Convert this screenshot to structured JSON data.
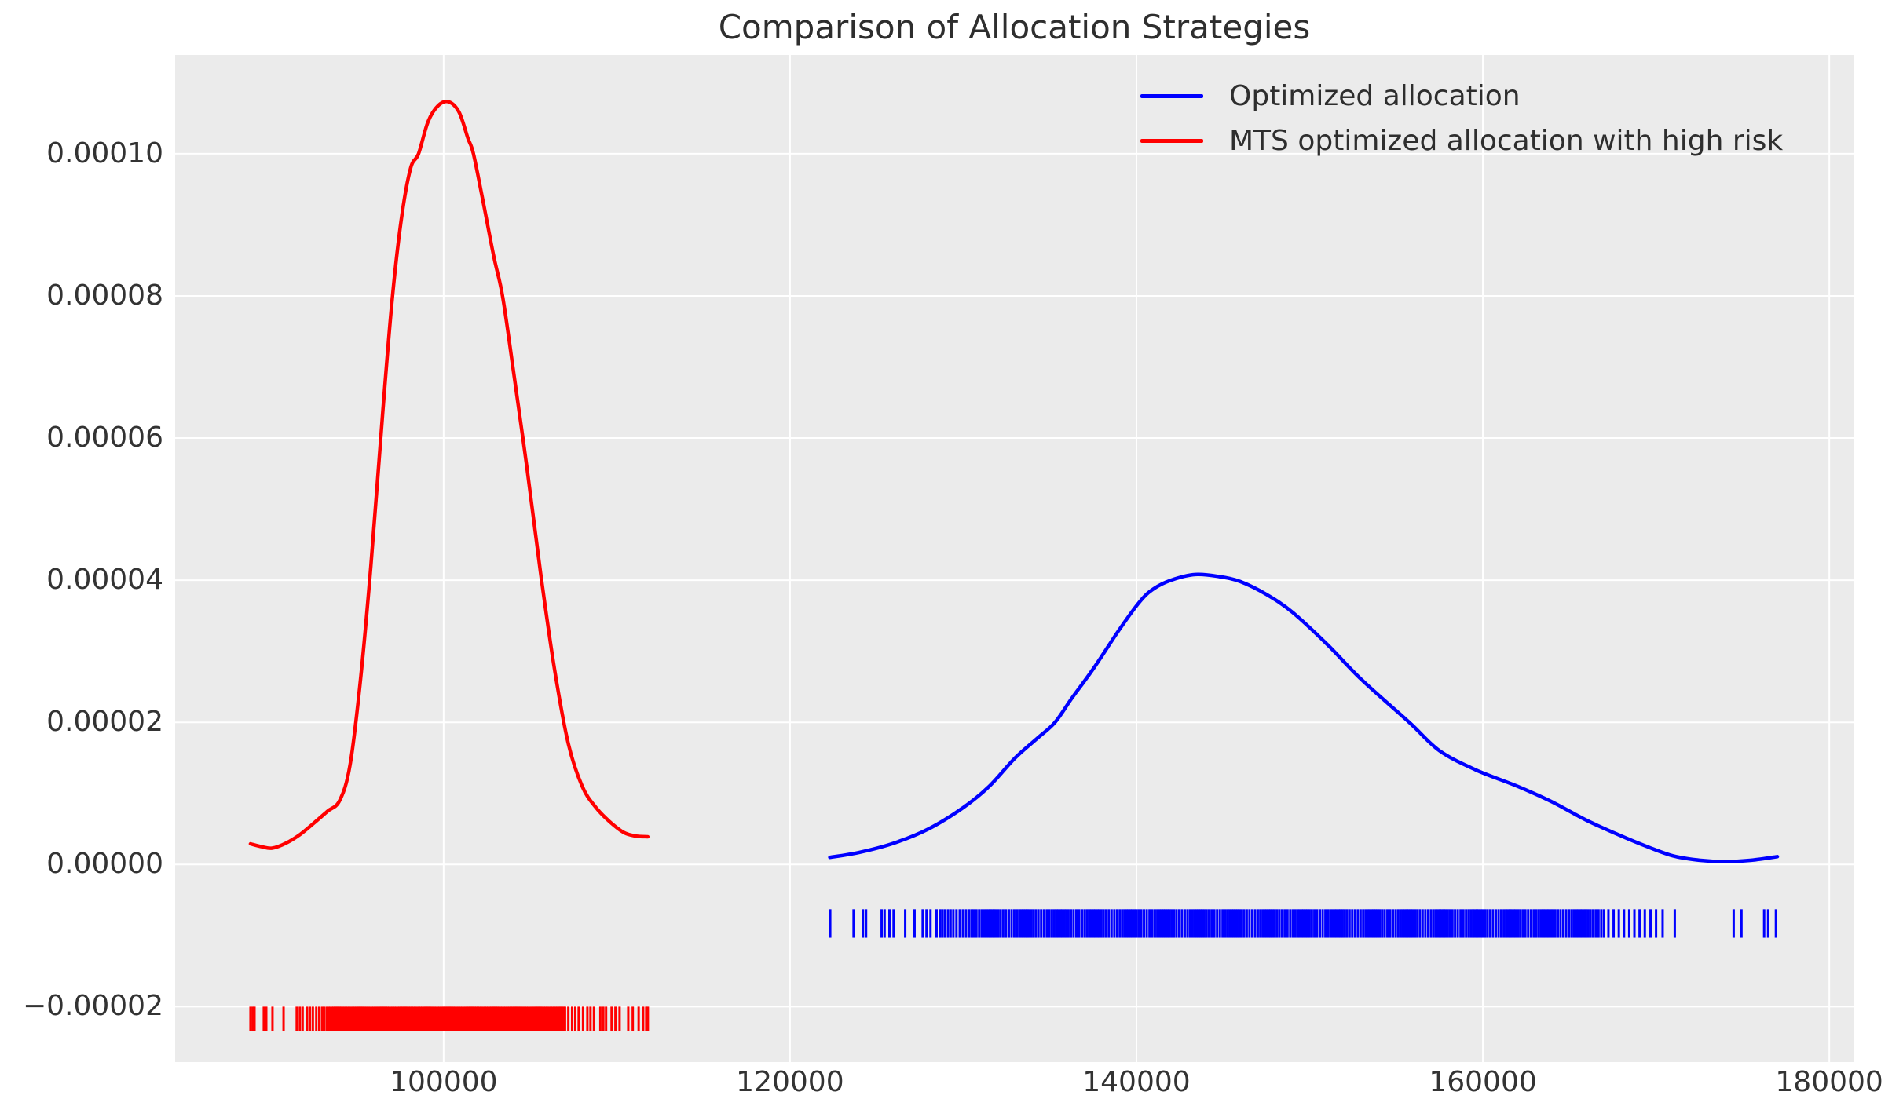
{
  "figure": {
    "background": "#ffffff",
    "plot_background": "#ebebeb",
    "grid_color": "#ffffff",
    "text_color": "#333333"
  },
  "chart_data": {
    "type": "line",
    "title": "Comparison of Allocation Strategies",
    "xlabel": "",
    "ylabel": "",
    "grid": true,
    "legend_position": "upper right",
    "xlim": [
      84500,
      181400
    ],
    "ylim": [
      -2.78e-05,
      0.0001139
    ],
    "x_ticks": [
      100000,
      120000,
      140000,
      160000,
      180000
    ],
    "x_tick_labels": [
      "100000",
      "120000",
      "140000",
      "160000",
      "180000"
    ],
    "y_ticks": [
      0.0001,
      8e-05,
      6e-05,
      4e-05,
      2e-05,
      0.0,
      -2e-05
    ],
    "y_tick_labels": [
      "0.00010",
      "0.00008",
      "0.00006",
      "0.00004",
      "0.00002",
      "0.00000",
      "−0.00002"
    ],
    "series": [
      {
        "name": "Optimized allocation",
        "color": "#0000ff",
        "line_width": 4.5,
        "x": [
          122300,
          124000,
          126000,
          128000,
          130000,
          131500,
          133000,
          134300,
          135300,
          136300,
          137500,
          139000,
          140200,
          141000,
          142000,
          143400,
          144800,
          146000,
          147500,
          149000,
          151000,
          153000,
          155750,
          157500,
          159600,
          162000,
          164000,
          166000,
          168000,
          169500,
          171000,
          172500,
          174000,
          175500,
          177000
        ],
        "y": [
          1e-06,
          1.7e-06,
          3e-06,
          5e-06,
          8e-06,
          1.1e-05,
          1.5e-05,
          1.78e-05,
          2e-05,
          2.35e-05,
          2.75e-05,
          3.3e-05,
          3.7e-05,
          3.88e-05,
          4e-05,
          4.08e-05,
          4.05e-05,
          3.98e-05,
          3.8e-05,
          3.55e-05,
          3.1e-05,
          2.6e-05,
          2e-05,
          1.6e-05,
          1.33e-05,
          1.1e-05,
          8.8e-06,
          6.2e-06,
          4e-06,
          2.5e-06,
          1.2e-06,
          6e-07,
          4e-07,
          6e-07,
          1.1e-06
        ],
        "rug": {
          "y_top": -6.3e-06,
          "y_bottom": -1.03e-05,
          "sparse": [
            122320,
            123670,
            124210,
            124390,
            125290,
            125460,
            125740,
            125980,
            126650,
            127190,
            127660,
            127880,
            128110,
            128460,
            128660,
            128800,
            128950,
            129120,
            129270,
            129430,
            129610,
            129800,
            129980,
            130160,
            130330,
            130480,
            167250,
            167550,
            167850,
            168150,
            168450,
            168750,
            169050,
            169350,
            169680,
            170000,
            170380,
            171080,
            174480,
            174930,
            176240,
            176470,
            176920
          ],
          "dense_bands": [
            [
              130600,
              166950,
              270
            ]
          ]
        }
      },
      {
        "name": "MTS optimized allocation with high risk",
        "color": "#ff0000",
        "line_width": 4.5,
        "x": [
          88850,
          89500,
          90100,
          90900,
          91700,
          92500,
          93300,
          94000,
          94600,
          95200,
          95800,
          96500,
          97050,
          97600,
          98100,
          98550,
          99100,
          99700,
          100300,
          100900,
          101400,
          101720,
          102300,
          102900,
          103400,
          104000,
          104800,
          105600,
          106400,
          107200,
          108000,
          108800,
          109600,
          110400,
          111100,
          111790
        ],
        "y": [
          2.9e-06,
          2.5e-06,
          2.3e-06,
          3e-06,
          4.2e-06,
          5.8e-06,
          7.5e-06,
          9e-06,
          1.4e-05,
          2.6e-05,
          4.2e-05,
          6.4e-05,
          8e-05,
          9.15e-05,
          9.8e-05,
          0.0001,
          0.0001045,
          0.0001068,
          0.0001073,
          0.0001058,
          0.0001022,
          0.0001,
          9.3e-05,
          8.55e-05,
          8e-05,
          7e-05,
          5.6e-05,
          4.1e-05,
          2.75e-05,
          1.7e-05,
          1.1e-05,
          8e-06,
          6e-06,
          4.5e-06,
          4e-06,
          3.9e-06
        ],
        "rug": {
          "y_top": -2e-05,
          "y_bottom": -2.34e-05,
          "sparse": [
            88850,
            88980,
            89080,
            89620,
            89760,
            90120,
            90760,
            91520,
            91700,
            91860,
            92120,
            92280,
            92450,
            92650,
            92820,
            92980,
            93100,
            107200,
            107420,
            107600,
            107800,
            108050,
            108300,
            108480,
            108680,
            109050,
            109220,
            109380,
            109700,
            109920,
            110160,
            110660,
            110920,
            111260,
            111520,
            111700,
            111790
          ],
          "dense_bands": [
            [
              93250,
              107050,
              160
            ]
          ]
        }
      }
    ]
  }
}
